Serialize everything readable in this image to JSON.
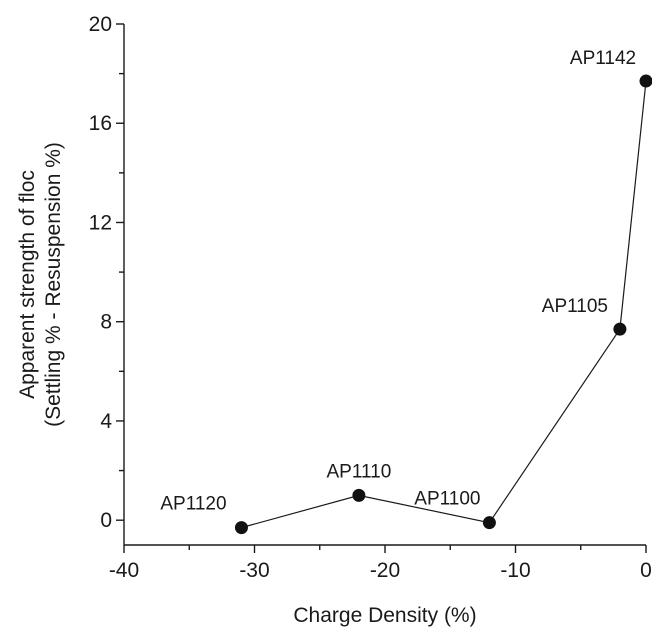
{
  "chart_data": {
    "type": "scatter",
    "xlabel": "Charge Density (%)",
    "ylabel": [
      "Apparent strength of floc",
      "(Settling % - Resuspension %)"
    ],
    "xlim": [
      -40,
      0
    ],
    "ylim": [
      -1,
      20
    ],
    "xticks": [
      -40,
      -30,
      -20,
      -10,
      0
    ],
    "yticks": [
      0,
      4,
      8,
      12,
      16,
      20
    ],
    "grid": false,
    "line_connected": true,
    "series": [
      {
        "points": [
          {
            "x": -31,
            "y": -0.3,
            "label": "AP1120"
          },
          {
            "x": -22,
            "y": 1.0,
            "label": "AP1110"
          },
          {
            "x": -12,
            "y": -0.1,
            "label": "AP1100"
          },
          {
            "x": -2,
            "y": 7.7,
            "label": "AP1105"
          },
          {
            "x": 0,
            "y": 17.7,
            "label": "AP1142"
          }
        ]
      }
    ],
    "colors": {
      "ink": "#111111"
    }
  }
}
